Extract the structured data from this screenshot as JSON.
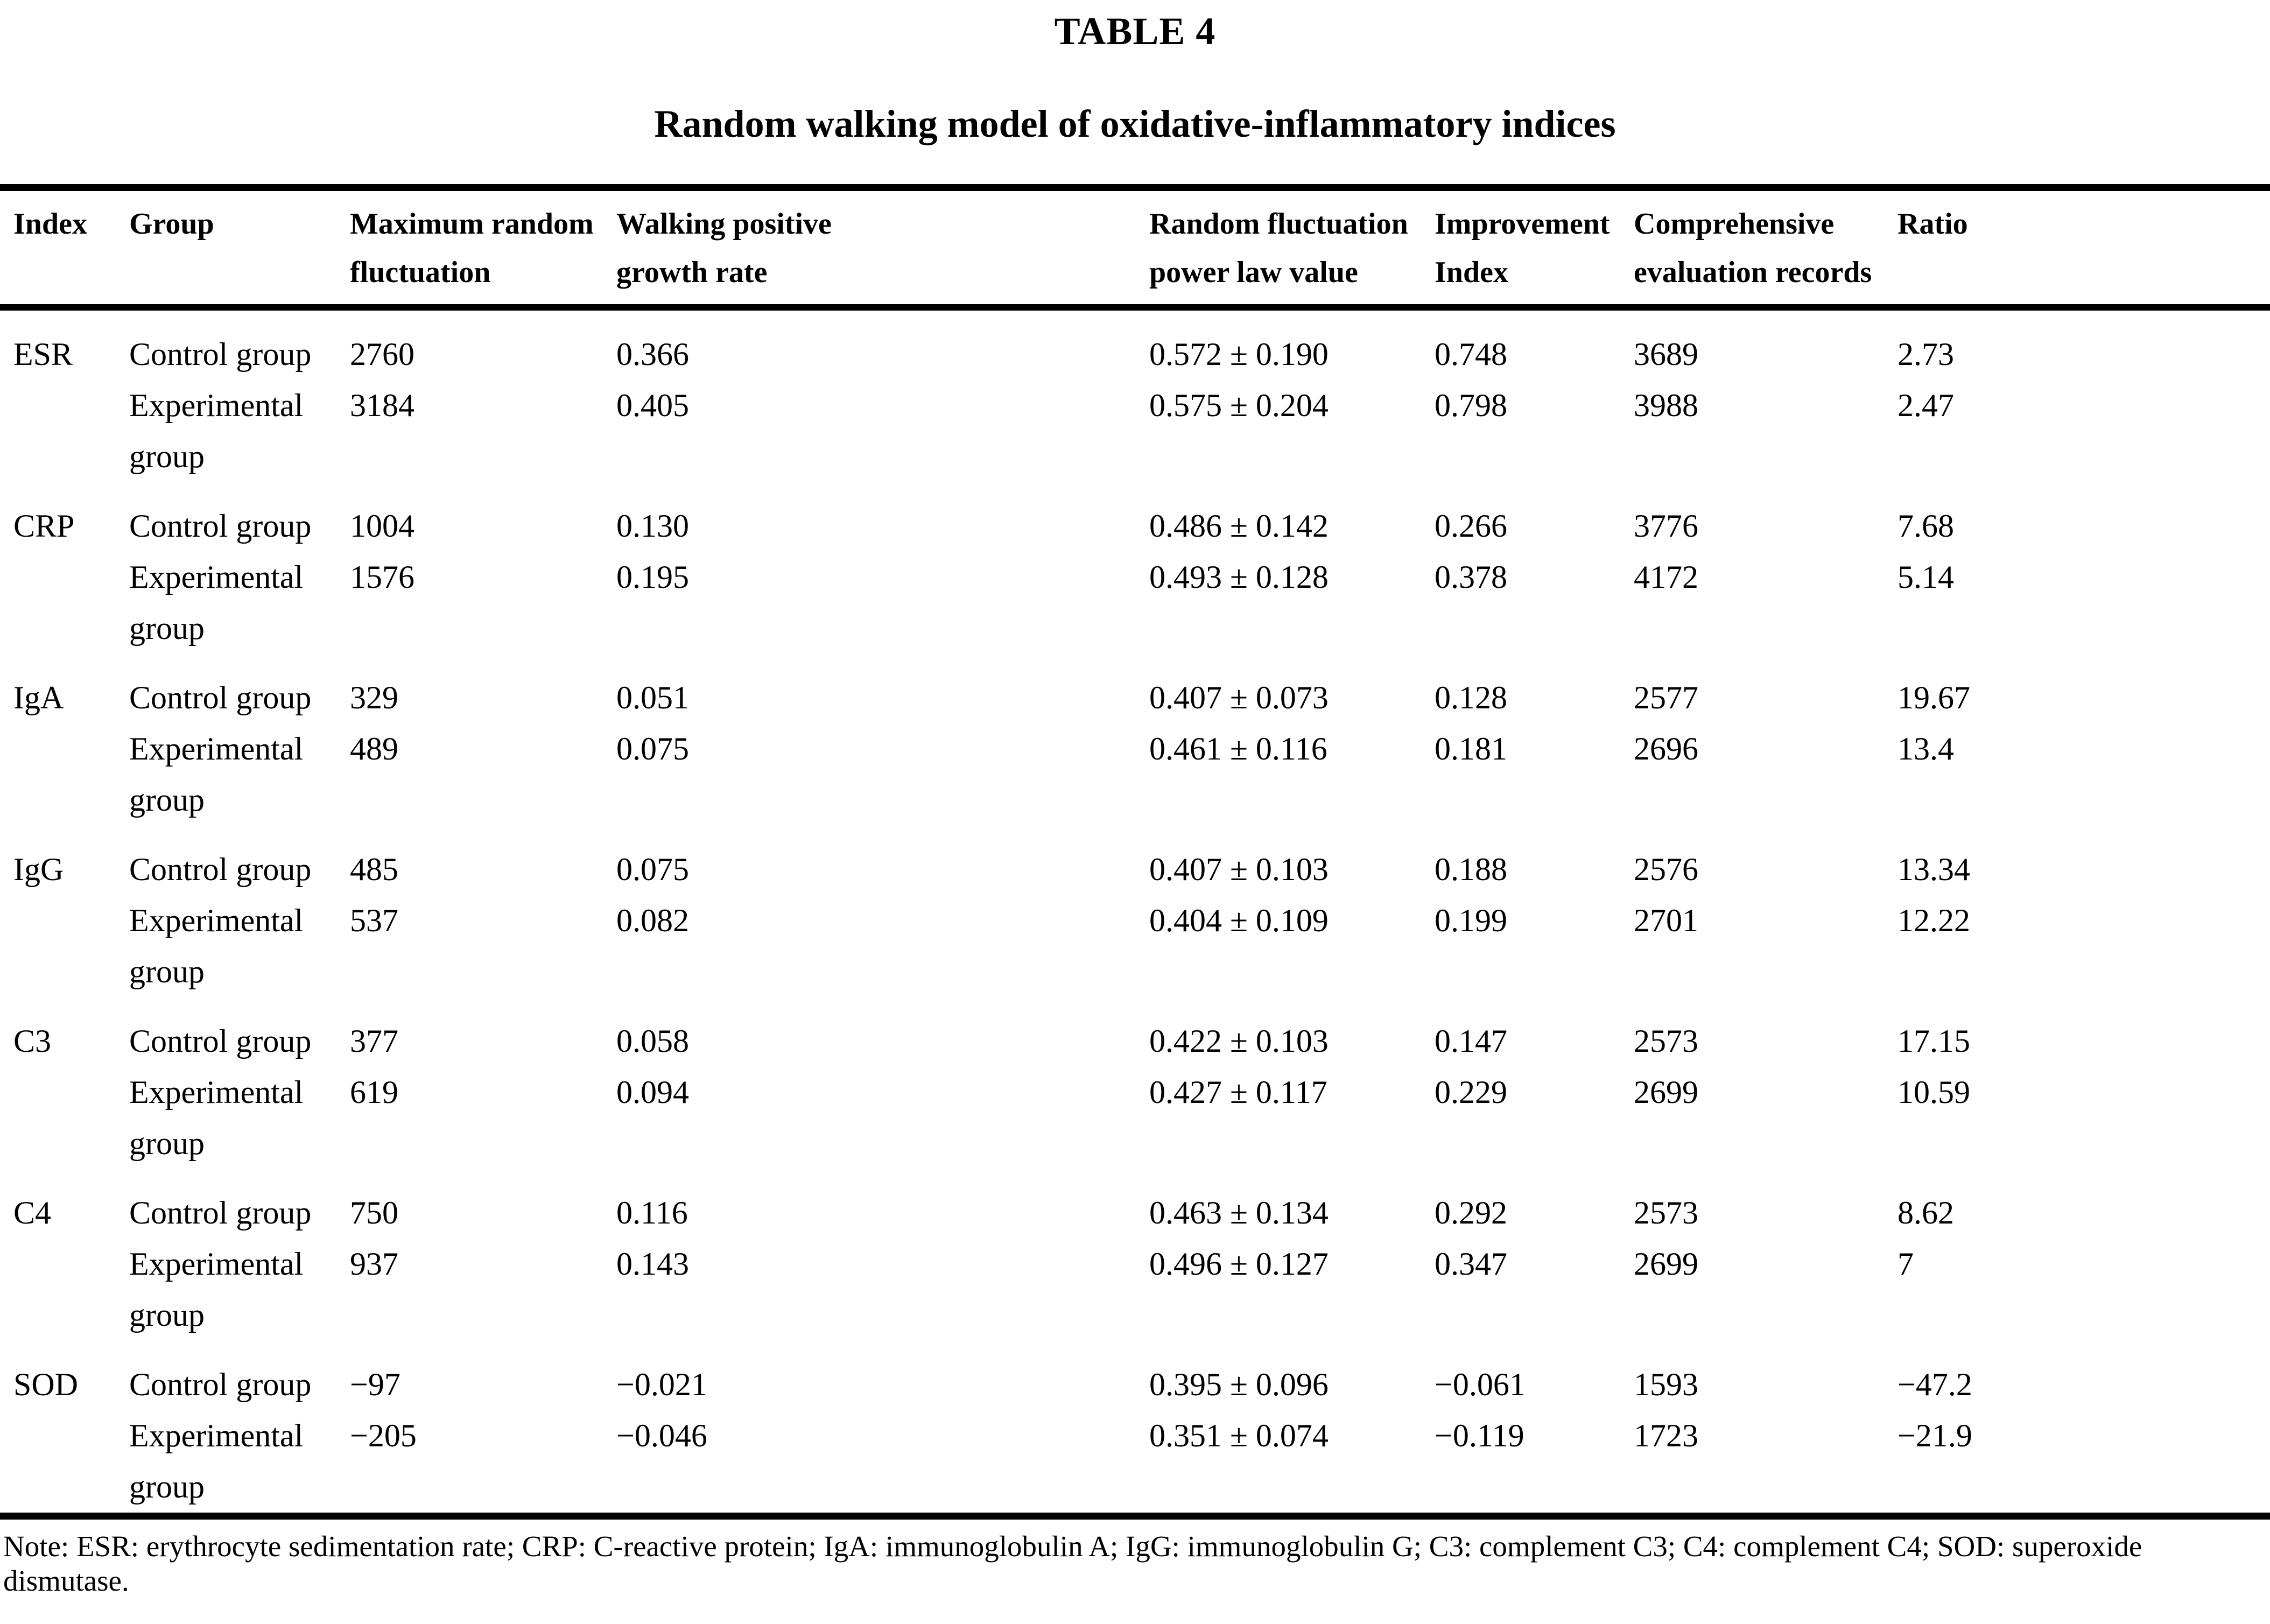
{
  "title": "TABLE 4",
  "subtitle": "Random walking model of oxidative-inflammatory indices",
  "table": {
    "columns": [
      "Index",
      "Group",
      "Maximum random fluctuation",
      "Walking positive growth rate",
      "Random fluctuation power law value",
      "Improvement Index",
      "Comprehensive evaluation records",
      "Ratio"
    ],
    "rows": [
      [
        "ESR",
        "Control group",
        "2760",
        "0.366",
        "0.572 ± 0.190",
        "0.748",
        "3689",
        "2.73"
      ],
      [
        "",
        "Experimental group",
        "3184",
        "0.405",
        "0.575 ± 0.204",
        "0.798",
        "3988",
        "2.47"
      ],
      [
        "CRP",
        "Control group",
        "1004",
        "0.130",
        "0.486 ± 0.142",
        "0.266",
        "3776",
        "7.68"
      ],
      [
        "",
        "Experimental group",
        "1576",
        "0.195",
        "0.493 ± 0.128",
        "0.378",
        "4172",
        "5.14"
      ],
      [
        "IgA",
        "Control group",
        "329",
        "0.051",
        "0.407 ± 0.073",
        "0.128",
        "2577",
        "19.67"
      ],
      [
        "",
        "Experimental group",
        "489",
        "0.075",
        "0.461 ± 0.116",
        "0.181",
        "2696",
        "13.4"
      ],
      [
        "IgG",
        "Control group",
        "485",
        "0.075",
        "0.407 ± 0.103",
        "0.188",
        "2576",
        "13.34"
      ],
      [
        "",
        "Experimental group",
        "537",
        "0.082",
        "0.404 ± 0.109",
        "0.199",
        "2701",
        "12.22"
      ],
      [
        "C3",
        "Control group",
        "377",
        "0.058",
        "0.422 ± 0.103",
        "0.147",
        "2573",
        "17.15"
      ],
      [
        "",
        "Experimental group",
        "619",
        "0.094",
        "0.427 ± 0.117",
        "0.229",
        "2699",
        "10.59"
      ],
      [
        "C4",
        "Control group",
        "750",
        "0.116",
        "0.463 ± 0.134",
        "0.292",
        "2573",
        "8.62"
      ],
      [
        "",
        "Experimental group",
        "937",
        "0.143",
        "0.496 ± 0.127",
        "0.347",
        "2699",
        "7"
      ],
      [
        "SOD",
        "Control group",
        "−97",
        "−0.021",
        "0.395 ± 0.096",
        "−0.061",
        "1593",
        "−47.2"
      ],
      [
        "",
        "Experimental group",
        "−205",
        "−0.046",
        "0.351 ± 0.074",
        "−0.119",
        "1723",
        "−21.9"
      ]
    ]
  },
  "note": "Note: ESR: erythrocyte sedimentation rate; CRP: C-reactive protein; IgA: immunoglobulin A; IgG: immunoglobulin G; C3: complement C3; C4: complement C4; SOD: superoxide dismutase."
}
